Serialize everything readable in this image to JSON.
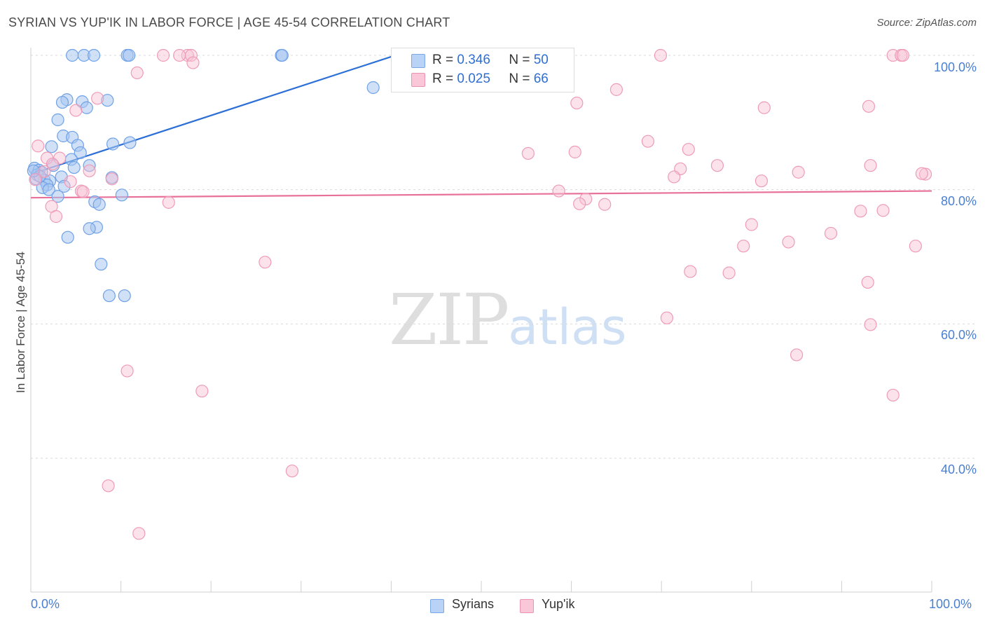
{
  "title": "SYRIAN VS YUP'IK IN LABOR FORCE | AGE 45-54 CORRELATION CHART",
  "source": "Source: ZipAtlas.com",
  "watermark": {
    "zip": "ZIP",
    "atlas": "atlas"
  },
  "legend": {
    "r_label": "R =",
    "n_label": "N =",
    "rows": [
      {
        "name": "Syrians",
        "r": "0.346",
        "n": "50"
      },
      {
        "name": "Yup'ik",
        "r": "0.025",
        "n": "66"
      }
    ]
  },
  "colors": {
    "syrians": "#6fa1e8",
    "yupik": "#f3a3be",
    "syrians_line": "#2c6fd6",
    "yupik_line": "#e8719a"
  },
  "chart_data": {
    "type": "scatter",
    "title": "SYRIAN VS YUP'IK IN LABOR FORCE | AGE 45-54 CORRELATION CHART",
    "xlabel": "",
    "ylabel": "In Labor Force | Age 45-54",
    "xlim": [
      0,
      100
    ],
    "ylim": [
      20,
      104
    ],
    "x_tick_labels": [
      "0.0%",
      "100.0%"
    ],
    "y_ticks": [
      40,
      60,
      80,
      100
    ],
    "y_tick_labels": [
      "40.0%",
      "60.0%",
      "80.0%",
      "100.0%"
    ],
    "grid": true,
    "series": [
      {
        "name": "Syrians",
        "trend": {
          "x": [
            0,
            40
          ],
          "y": [
            82.3,
            99.8
          ]
        },
        "points": [
          [
            4.6,
            100
          ],
          [
            5.9,
            100
          ],
          [
            7.0,
            100
          ],
          [
            10.7,
            100
          ],
          [
            10.9,
            100
          ],
          [
            27.8,
            100
          ],
          [
            27.9,
            100
          ],
          [
            38.0,
            95.2
          ],
          [
            4.0,
            93.4
          ],
          [
            3.5,
            93.0
          ],
          [
            5.7,
            93.1
          ],
          [
            6.2,
            92.2
          ],
          [
            8.5,
            93.3
          ],
          [
            3.0,
            90.4
          ],
          [
            3.6,
            88.0
          ],
          [
            4.6,
            87.8
          ],
          [
            5.2,
            86.6
          ],
          [
            9.1,
            86.8
          ],
          [
            11.0,
            87.0
          ],
          [
            2.3,
            86.4
          ],
          [
            5.5,
            85.5
          ],
          [
            4.5,
            84.5
          ],
          [
            2.5,
            83.6
          ],
          [
            6.5,
            83.6
          ],
          [
            4.8,
            83.3
          ],
          [
            0.4,
            83.2
          ],
          [
            0.9,
            82.9
          ],
          [
            1.2,
            82.6
          ],
          [
            0.7,
            82.2
          ],
          [
            3.4,
            81.9
          ],
          [
            9.0,
            81.8
          ],
          [
            1.5,
            81.4
          ],
          [
            2.1,
            81.3
          ],
          [
            1.8,
            80.7
          ],
          [
            1.3,
            80.3
          ],
          [
            3.7,
            80.5
          ],
          [
            2.0,
            80.0
          ],
          [
            10.1,
            79.2
          ],
          [
            3.0,
            79.0
          ],
          [
            7.1,
            78.2
          ],
          [
            7.6,
            77.8
          ],
          [
            7.3,
            74.4
          ],
          [
            6.5,
            74.2
          ],
          [
            4.1,
            72.9
          ],
          [
            7.8,
            68.9
          ],
          [
            8.7,
            64.2
          ],
          [
            10.4,
            64.2
          ],
          [
            0.6,
            81.6
          ],
          [
            1.0,
            82.0
          ],
          [
            0.3,
            82.8
          ]
        ]
      },
      {
        "name": "Yup'ik",
        "trend": {
          "x": [
            0,
            100
          ],
          "y": [
            78.8,
            79.8
          ]
        },
        "points": [
          [
            14.7,
            100
          ],
          [
            17.4,
            100
          ],
          [
            17.8,
            100
          ],
          [
            69.9,
            100
          ],
          [
            95.7,
            100
          ],
          [
            96.6,
            100
          ],
          [
            96.8,
            100
          ],
          [
            16.5,
            100
          ],
          [
            18.0,
            98.9
          ],
          [
            11.8,
            97.4
          ],
          [
            7.4,
            93.6
          ],
          [
            65.0,
            94.9
          ],
          [
            60.6,
            92.9
          ],
          [
            81.4,
            92.2
          ],
          [
            93.0,
            92.4
          ],
          [
            5.0,
            91.8
          ],
          [
            68.5,
            87.2
          ],
          [
            0.8,
            86.5
          ],
          [
            73.0,
            86.0
          ],
          [
            1.8,
            84.7
          ],
          [
            3.2,
            84.7
          ],
          [
            55.2,
            85.4
          ],
          [
            60.4,
            85.6
          ],
          [
            2.4,
            83.8
          ],
          [
            76.2,
            83.6
          ],
          [
            93.2,
            83.6
          ],
          [
            72.1,
            83.1
          ],
          [
            6.5,
            82.8
          ],
          [
            85.2,
            82.6
          ],
          [
            99.3,
            82.3
          ],
          [
            98.9,
            82.4
          ],
          [
            71.4,
            81.9
          ],
          [
            9.0,
            81.6
          ],
          [
            81.1,
            81.3
          ],
          [
            4.4,
            81.2
          ],
          [
            5.6,
            79.8
          ],
          [
            5.8,
            79.7
          ],
          [
            58.6,
            79.8
          ],
          [
            61.6,
            78.6
          ],
          [
            60.9,
            77.9
          ],
          [
            15.3,
            78.1
          ],
          [
            63.7,
            77.8
          ],
          [
            2.3,
            77.5
          ],
          [
            94.6,
            76.9
          ],
          [
            92.1,
            76.8
          ],
          [
            2.8,
            76.0
          ],
          [
            80.0,
            74.8
          ],
          [
            88.8,
            73.5
          ],
          [
            84.1,
            72.2
          ],
          [
            98.2,
            71.6
          ],
          [
            79.1,
            71.6
          ],
          [
            26.0,
            69.2
          ],
          [
            73.2,
            67.8
          ],
          [
            77.5,
            67.6
          ],
          [
            92.9,
            66.2
          ],
          [
            70.6,
            60.9
          ],
          [
            93.2,
            59.9
          ],
          [
            85.0,
            55.4
          ],
          [
            10.7,
            53.0
          ],
          [
            19.0,
            50.0
          ],
          [
            95.7,
            49.4
          ],
          [
            29.0,
            38.1
          ],
          [
            8.6,
            35.9
          ],
          [
            12.0,
            28.8
          ],
          [
            0.5,
            81.5
          ],
          [
            1.5,
            82.7
          ]
        ]
      }
    ]
  }
}
